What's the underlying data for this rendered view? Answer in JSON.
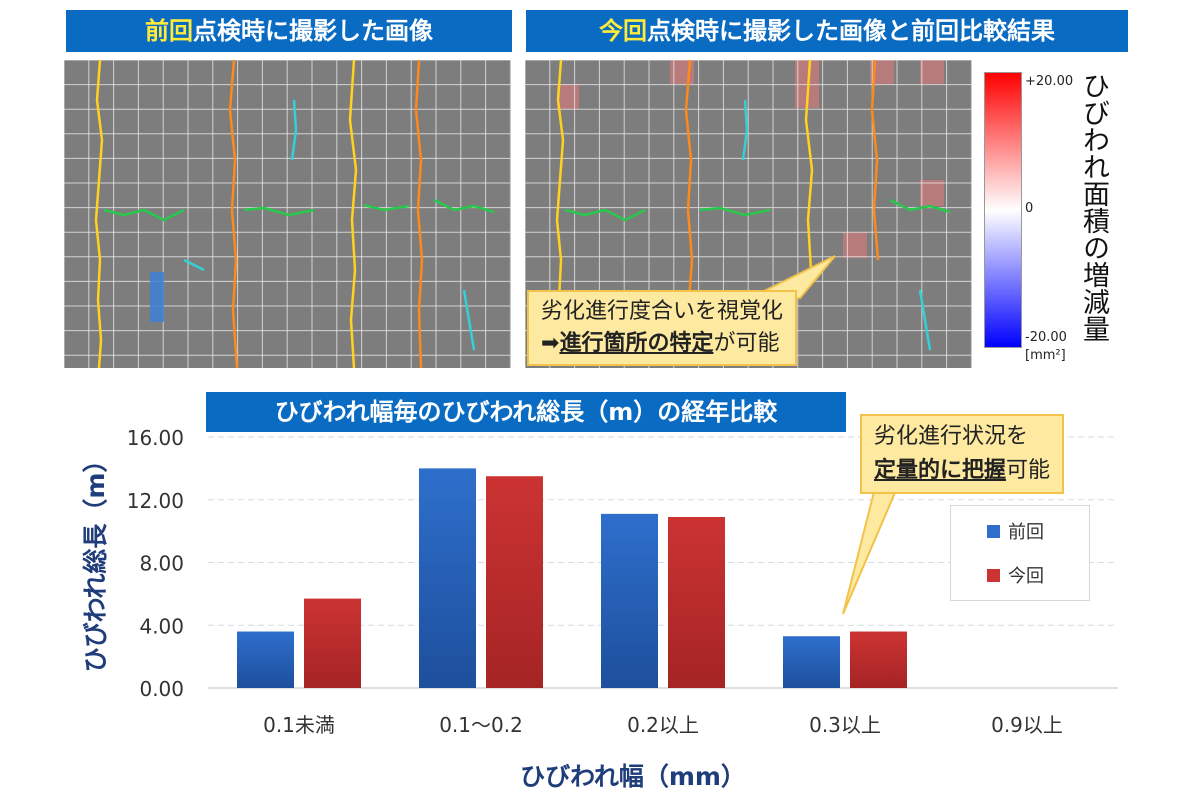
{
  "top": {
    "left_title_hl": "前回",
    "left_title_rest": "点検時に撮影した画像",
    "right_title_hl": "今回",
    "right_title_rest": "点検時に撮影した画像と前回比較結果",
    "colorbar": {
      "max": "+20.00",
      "mid": "0",
      "min": "-20.00",
      "unit": "[mm²]",
      "title": "ひびわれ面積の増減量"
    },
    "callout1_line1": "劣化進行度合いを視覚化",
    "callout1_arrow": "➡",
    "callout1_bold": "進行箇所の特定",
    "callout1_rest": "が可能"
  },
  "chart_data": {
    "type": "bar",
    "title": "ひびわれ幅毎のひびわれ総長（m）の経年比較",
    "xlabel": "ひびわれ幅（mm）",
    "ylabel": "ひびわれ総長（m）",
    "categories": [
      "0.1未満",
      "0.1〜0.2",
      "0.2以上",
      "0.3以上",
      "0.9以上"
    ],
    "series": [
      {
        "name": "前回",
        "values": [
          3.6,
          14.0,
          11.1,
          3.3,
          0
        ],
        "color": "#2e6fcc"
      },
      {
        "name": "今回",
        "values": [
          5.7,
          13.5,
          10.9,
          3.6,
          0
        ],
        "color": "#cc3333"
      }
    ],
    "yticks": [
      "0.00",
      "4.00",
      "8.00",
      "12.00",
      "16.00"
    ],
    "ylim": [
      0,
      16
    ],
    "grid": true,
    "legend_position": "right"
  },
  "callout2": {
    "line1": "劣化進行状況を",
    "bold": "定量的に把握",
    "rest": "可能"
  }
}
